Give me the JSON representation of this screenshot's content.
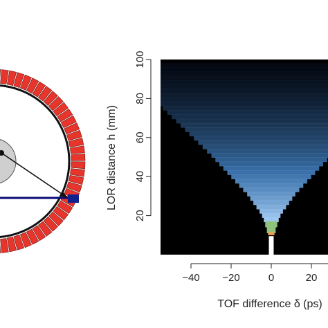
{
  "figure": {
    "left_panel": {
      "colors": {
        "crystal": "#e8352b",
        "crystal_edge": "#6a1410",
        "ring_outline": "#111111",
        "highlight_crystal": "#10208c",
        "lor_line": "#0a0a78",
        "object_fill": "#cfcfcf",
        "object_edge": "#555555",
        "arrow": "#111111"
      }
    },
    "right_panel": {
      "colors": {
        "background": "#000000",
        "low": "#0b1a33",
        "mid": "#4a8fd6",
        "high": "#b8dcff",
        "peak_green": "#8fc27a",
        "peak_orange": "#f0a050",
        "peak_white": "#ffffff"
      }
    }
  },
  "chart_data": {
    "type": "heatmap",
    "title": "",
    "xlabel": "TOF difference δ (ps)",
    "ylabel": "LOR distance h (mm)",
    "xlim": [
      -50,
      50
    ],
    "ylim": [
      0,
      100
    ],
    "x_ticks": [
      -40,
      -20,
      0,
      20,
      40
    ],
    "y_ticks": [
      20,
      40,
      60,
      80,
      100
    ],
    "x_tick_labels": [
      "−40",
      "−20",
      "0",
      "20",
      "40"
    ],
    "y_tick_labels": [
      "20",
      "40",
      "60",
      "80",
      "100"
    ],
    "description_of_values": "cone-shaped intensity opening upward from δ=0 at h≈8; brightest near apex",
    "cone_apex": {
      "x": 0,
      "y": 8
    },
    "cone_edge_points": [
      {
        "h": 10,
        "half_width": 1
      },
      {
        "h": 20,
        "half_width": 5
      },
      {
        "h": 30,
        "half_width": 12
      },
      {
        "h": 40,
        "half_width": 21
      },
      {
        "h": 50,
        "half_width": 30
      },
      {
        "h": 60,
        "half_width": 40
      },
      {
        "h": 70,
        "half_width": 50
      }
    ]
  }
}
